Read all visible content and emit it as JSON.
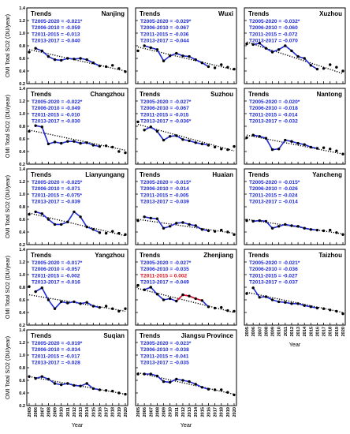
{
  "colors": {
    "blue": "#1f2bd6",
    "red": "#e0141e",
    "black": "#000000"
  },
  "shared": {
    "trends_heading": "Trends",
    "trend_labels": [
      "T2005-2020 = ",
      "T2006-2010 = ",
      "T2011-2015 = ",
      "T2013-2017 = "
    ],
    "ylabel": "OMI Total SO2 (DU/year)",
    "xlabel": "Year",
    "yticks": [
      "0.2",
      "0.4",
      "0.6",
      "0.8",
      "1.0",
      "1.2",
      "1.4"
    ],
    "xticks": [
      "2005",
      "2006",
      "2007",
      "2008",
      "2009",
      "2010",
      "2011",
      "2012",
      "2013",
      "2014",
      "2015",
      "2016",
      "2017",
      "2018",
      "2019",
      "2020"
    ]
  },
  "chart_data": [
    {
      "type": "line",
      "title": "Nanjing",
      "row": 0,
      "col": 0,
      "trends": [
        "-0.021*",
        "-0.059",
        "-0.013",
        "-0.040"
      ],
      "red_index": -1,
      "ylim": [
        0.2,
        1.4
      ],
      "xlim": [
        2005,
        2020
      ],
      "x": [
        2005,
        2006,
        2007,
        2008,
        2009,
        2010,
        2011,
        2012,
        2013,
        2014,
        2015,
        2016,
        2017,
        2018,
        2019,
        2020
      ],
      "y": [
        0.7,
        0.76,
        0.72,
        0.63,
        0.58,
        0.57,
        0.6,
        0.59,
        0.6,
        0.58,
        0.53,
        0.48,
        0.47,
        0.49,
        0.44,
        0.39
      ],
      "fit": [
        [
          2005,
          0.74
        ],
        [
          2020,
          0.4
        ]
      ],
      "blue_range": [
        2006,
        2016
      ]
    },
    {
      "type": "line",
      "title": "Wuxi",
      "row": 0,
      "col": 1,
      "trends": [
        "-0.029*",
        "-0.067",
        "-0.036",
        "-0.044"
      ],
      "red_index": -1,
      "ylim": [
        0.2,
        1.4
      ],
      "xlim": [
        2005,
        2020
      ],
      "x": [
        2005,
        2006,
        2007,
        2008,
        2009,
        2010,
        2011,
        2012,
        2013,
        2014,
        2015,
        2016,
        2017,
        2018,
        2019,
        2020
      ],
      "y": [
        0.72,
        0.8,
        0.77,
        0.74,
        0.56,
        0.64,
        0.68,
        0.64,
        0.63,
        0.58,
        0.53,
        0.47,
        0.45,
        0.5,
        0.46,
        0.43
      ],
      "fit": [
        [
          2005,
          0.78
        ],
        [
          2020,
          0.42
        ]
      ],
      "blue_range": [
        2006,
        2016
      ]
    },
    {
      "type": "line",
      "title": "Xuzhou",
      "row": 0,
      "col": 2,
      "trends": [
        "-0.032*",
        "-0.060",
        "-0.072",
        "-0.070"
      ],
      "red_index": -1,
      "ylim": [
        0.2,
        1.4
      ],
      "xlim": [
        2005,
        2020
      ],
      "x": [
        2005,
        2006,
        2007,
        2008,
        2009,
        2010,
        2011,
        2012,
        2013,
        2014,
        2015,
        2016,
        2017,
        2018,
        2019,
        2020
      ],
      "y": [
        0.83,
        0.82,
        0.84,
        0.76,
        0.7,
        0.74,
        0.8,
        0.72,
        0.63,
        0.6,
        0.49,
        0.43,
        0.44,
        0.5,
        0.46,
        0.4
      ],
      "fit": [
        [
          2005,
          0.86
        ],
        [
          2020,
          0.36
        ]
      ],
      "blue_range": [
        2006,
        2016
      ]
    },
    {
      "type": "line",
      "title": "Changzhou",
      "row": 1,
      "col": 0,
      "trends": [
        "-0.022*",
        "-0.049",
        "-0.010",
        "-0.030"
      ],
      "red_index": -1,
      "ylim": [
        0.2,
        1.4
      ],
      "xlim": [
        2005,
        2020
      ],
      "x": [
        2005,
        2006,
        2007,
        2008,
        2009,
        2010,
        2011,
        2012,
        2013,
        2014,
        2015,
        2016,
        2017,
        2018,
        2019,
        2020
      ],
      "y": [
        0.72,
        0.81,
        0.79,
        0.52,
        0.55,
        0.53,
        0.56,
        0.56,
        0.53,
        0.54,
        0.5,
        0.48,
        0.49,
        0.47,
        0.4,
        0.38
      ],
      "fit": [
        [
          2005,
          0.74
        ],
        [
          2020,
          0.42
        ]
      ],
      "blue_range": [
        2006,
        2016
      ]
    },
    {
      "type": "line",
      "title": "Suzhou",
      "row": 1,
      "col": 1,
      "trends": [
        "-0.027*",
        "-0.067",
        "-0.015",
        "-0.036*"
      ],
      "red_index": -1,
      "ylim": [
        0.2,
        1.4
      ],
      "xlim": [
        2005,
        2020
      ],
      "x": [
        2005,
        2006,
        2007,
        2008,
        2009,
        2010,
        2011,
        2012,
        2013,
        2014,
        2015,
        2016,
        2017,
        2018,
        2019,
        2020
      ],
      "y": [
        0.87,
        0.74,
        0.79,
        0.72,
        0.58,
        0.64,
        0.65,
        0.59,
        0.57,
        0.54,
        0.52,
        0.5,
        0.47,
        0.44,
        0.43,
        0.48
      ],
      "fit": [
        [
          2005,
          0.83
        ],
        [
          2020,
          0.41
        ]
      ],
      "blue_range": [
        2006,
        2016
      ]
    },
    {
      "type": "line",
      "title": "Nantong",
      "row": 1,
      "col": 2,
      "trends": [
        "-0.020*",
        "-0.018",
        "-0.014",
        "-0.032"
      ],
      "red_index": -1,
      "ylim": [
        0.2,
        1.4
      ],
      "xlim": [
        2005,
        2020
      ],
      "x": [
        2005,
        2006,
        2007,
        2008,
        2009,
        2010,
        2011,
        2012,
        2013,
        2014,
        2015,
        2016,
        2017,
        2018,
        2019,
        2020
      ],
      "y": [
        0.62,
        0.66,
        0.64,
        0.61,
        0.43,
        0.44,
        0.58,
        0.56,
        0.53,
        0.51,
        0.47,
        0.45,
        0.46,
        0.44,
        0.41,
        0.36
      ],
      "fit": [
        [
          2005,
          0.66
        ],
        [
          2020,
          0.36
        ]
      ],
      "blue_range": [
        2006,
        2016
      ]
    },
    {
      "type": "line",
      "title": "Lianyungang",
      "row": 2,
      "col": 0,
      "trends": [
        "-0.025*",
        "-0.071",
        "-0.075*",
        "-0.039"
      ],
      "red_index": -1,
      "ylim": [
        0.2,
        1.4
      ],
      "xlim": [
        2005,
        2020
      ],
      "x": [
        2005,
        2006,
        2007,
        2008,
        2009,
        2010,
        2011,
        2012,
        2013,
        2014,
        2015,
        2016,
        2017,
        2018,
        2019,
        2020
      ],
      "y": [
        0.68,
        0.72,
        0.69,
        0.6,
        0.52,
        0.52,
        0.56,
        0.72,
        0.64,
        0.48,
        0.44,
        0.39,
        0.38,
        0.41,
        0.38,
        0.36
      ],
      "fit": [
        [
          2005,
          0.7
        ],
        [
          2020,
          0.34
        ]
      ],
      "blue_range": [
        2006,
        2016
      ]
    },
    {
      "type": "line",
      "title": "Huaian",
      "row": 2,
      "col": 1,
      "trends": [
        "-0.015*",
        "-0.014",
        "-0.005",
        "-0.039"
      ],
      "red_index": -1,
      "ylim": [
        0.2,
        1.4
      ],
      "xlim": [
        2005,
        2020
      ],
      "x": [
        2005,
        2006,
        2007,
        2008,
        2009,
        2010,
        2011,
        2012,
        2013,
        2014,
        2015,
        2016,
        2017,
        2018,
        2019,
        2020
      ],
      "y": [
        0.58,
        0.64,
        0.62,
        0.61,
        0.46,
        0.49,
        0.54,
        0.55,
        0.52,
        0.5,
        0.44,
        0.42,
        0.41,
        0.43,
        0.4,
        0.36
      ],
      "fit": [
        [
          2005,
          0.6
        ],
        [
          2020,
          0.38
        ]
      ],
      "blue_range": [
        2006,
        2016
      ]
    },
    {
      "type": "line",
      "title": "Yancheng",
      "row": 2,
      "col": 2,
      "trends": [
        "-0.015*",
        "-0.026",
        "-0.024",
        "-0.014"
      ],
      "red_index": -1,
      "ylim": [
        0.2,
        1.4
      ],
      "xlim": [
        2005,
        2020
      ],
      "x": [
        2005,
        2006,
        2007,
        2008,
        2009,
        2010,
        2011,
        2012,
        2013,
        2014,
        2015,
        2016,
        2017,
        2018,
        2019,
        2020
      ],
      "y": [
        0.58,
        0.57,
        0.58,
        0.57,
        0.46,
        0.49,
        0.52,
        0.5,
        0.49,
        0.46,
        0.44,
        0.43,
        0.42,
        0.43,
        0.39,
        0.36
      ],
      "fit": [
        [
          2005,
          0.6
        ],
        [
          2020,
          0.37
        ]
      ],
      "blue_range": [
        2006,
        2016
      ]
    },
    {
      "type": "line",
      "title": "Yangzhou",
      "row": 3,
      "col": 0,
      "trends": [
        "-0.017*",
        "-0.057",
        "-0.002",
        "-0.016"
      ],
      "red_index": -1,
      "ylim": [
        0.2,
        1.4
      ],
      "xlim": [
        2005,
        2020
      ],
      "x": [
        2005,
        2006,
        2007,
        2008,
        2009,
        2010,
        2011,
        2012,
        2013,
        2014,
        2015,
        2016,
        2017,
        2018,
        2019,
        2020
      ],
      "y": [
        0.81,
        0.73,
        0.79,
        0.6,
        0.46,
        0.57,
        0.55,
        0.57,
        0.54,
        0.56,
        0.5,
        0.48,
        0.5,
        0.46,
        0.42,
        0.46
      ],
      "fit": [
        [
          2005,
          0.68
        ],
        [
          2020,
          0.42
        ]
      ],
      "blue_range": [
        2006,
        2016
      ]
    },
    {
      "type": "line",
      "title": "Zhenjiang",
      "row": 3,
      "col": 1,
      "trends": [
        "-0.027*",
        "-0.035",
        "0.002",
        "-0.049"
      ],
      "red_index": 2,
      "ylim": [
        0.2,
        1.4
      ],
      "xlim": [
        2005,
        2020
      ],
      "x": [
        2005,
        2006,
        2007,
        2008,
        2009,
        2010,
        2011,
        2012,
        2013,
        2014,
        2015,
        2016,
        2017,
        2018,
        2019,
        2020
      ],
      "y": [
        0.83,
        0.76,
        0.8,
        0.69,
        0.6,
        0.62,
        0.58,
        0.68,
        0.66,
        0.62,
        0.59,
        0.49,
        0.47,
        0.48,
        0.43,
        0.42
      ],
      "fit": [
        [
          2005,
          0.78
        ],
        [
          2020,
          0.4
        ]
      ],
      "blue_range": [
        2006,
        2016
      ],
      "red_range": [
        2011,
        2015
      ]
    },
    {
      "type": "line",
      "title": "Taizhou",
      "row": 3,
      "col": 2,
      "trends": [
        "-0.021*",
        "-0.036",
        "-0.027",
        "-0.037"
      ],
      "red_index": -1,
      "ylim": [
        0.2,
        1.4
      ],
      "xlim": [
        2005,
        2020
      ],
      "x": [
        2005,
        2006,
        2007,
        2008,
        2009,
        2010,
        2011,
        2012,
        2013,
        2014,
        2015,
        2016,
        2017,
        2018,
        2019,
        2020
      ],
      "y": [
        0.7,
        0.79,
        0.64,
        0.65,
        0.6,
        0.57,
        0.56,
        0.54,
        0.54,
        0.51,
        0.49,
        0.47,
        0.46,
        0.44,
        0.42,
        0.38
      ],
      "fit": [
        [
          2005,
          0.72
        ],
        [
          2020,
          0.4
        ]
      ],
      "blue_range": [
        2006,
        2016
      ]
    },
    {
      "type": "line",
      "title": "Suqian",
      "row": 4,
      "col": 0,
      "trends": [
        "-0.019*",
        "-0.034",
        "-0.017",
        "-0.028"
      ],
      "red_index": -1,
      "ylim": [
        0.2,
        1.4
      ],
      "xlim": [
        2005,
        2020
      ],
      "x": [
        2005,
        2006,
        2007,
        2008,
        2009,
        2010,
        2011,
        2012,
        2013,
        2014,
        2015,
        2016,
        2017,
        2018,
        2019,
        2020
      ],
      "y": [
        0.66,
        0.63,
        0.66,
        0.62,
        0.55,
        0.53,
        0.55,
        0.52,
        0.51,
        0.55,
        0.47,
        0.45,
        0.44,
        0.43,
        0.4,
        0.38
      ],
      "fit": [
        [
          2005,
          0.66
        ],
        [
          2020,
          0.38
        ]
      ],
      "blue_range": [
        2006,
        2016
      ]
    },
    {
      "type": "line",
      "title": "Jiangsu Province",
      "row": 4,
      "col": 1,
      "trends": [
        "-0.023*",
        "-0.038",
        "-0.041",
        "-0.035"
      ],
      "red_index": -1,
      "ylim": [
        0.2,
        1.4
      ],
      "xlim": [
        2005,
        2020
      ],
      "x": [
        2005,
        2006,
        2007,
        2008,
        2009,
        2010,
        2011,
        2012,
        2013,
        2014,
        2015,
        2016,
        2017,
        2018,
        2019,
        2020
      ],
      "y": [
        0.7,
        0.7,
        0.7,
        0.67,
        0.58,
        0.57,
        0.62,
        0.6,
        0.58,
        0.54,
        0.49,
        0.46,
        0.45,
        0.45,
        0.41,
        0.37
      ],
      "fit": [
        [
          2005,
          0.72
        ],
        [
          2020,
          0.38
        ]
      ],
      "blue_range": [
        2006,
        2016
      ]
    }
  ]
}
